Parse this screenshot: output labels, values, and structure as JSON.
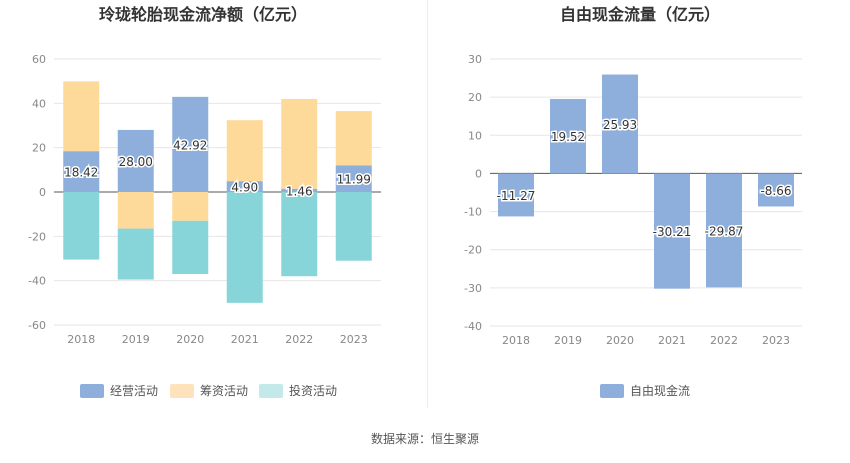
{
  "chart_data": [
    {
      "type": "bar",
      "stacked": true,
      "title": "玲珑轮胎现金流净额（亿元）",
      "categories": [
        "2018",
        "2019",
        "2020",
        "2021",
        "2022",
        "2023"
      ],
      "ylim": [
        -60,
        60
      ],
      "yticks": [
        -60,
        -40,
        -20,
        0,
        20,
        40,
        60
      ],
      "series": [
        {
          "name": "经营活动",
          "color": "#8eaedb",
          "values": [
            18.42,
            28.0,
            42.92,
            4.9,
            1.46,
            11.99
          ]
        },
        {
          "name": "筹资活动",
          "color": "#fdd99a",
          "values": [
            31.5,
            -16.5,
            -13.0,
            27.5,
            40.5,
            24.5
          ]
        },
        {
          "name": "投资活动",
          "color": "#87d5d8",
          "values": [
            -30.5,
            -23.0,
            -24.0,
            -50.0,
            -38.0,
            -31.0
          ]
        }
      ],
      "data_labels": [
        "18.42",
        "28.00",
        "42.92",
        "4.90",
        "1.46",
        "11.99"
      ],
      "legend": [
        {
          "label": "经营活动",
          "color": "#8eaedb"
        },
        {
          "label": "筹资活动",
          "color": "#fde2bb"
        },
        {
          "label": "投资活动",
          "color": "#c4e9ea"
        }
      ]
    },
    {
      "type": "bar",
      "title": "自由现金流量（亿元）",
      "categories": [
        "2018",
        "2019",
        "2020",
        "2021",
        "2022",
        "2023"
      ],
      "ylim": [
        -40,
        30
      ],
      "yticks": [
        -40,
        -30,
        -20,
        -10,
        0,
        10,
        20,
        30
      ],
      "series": [
        {
          "name": "自由现金流",
          "color": "#8eaedb",
          "values": [
            -11.27,
            19.52,
            25.93,
            -30.21,
            -29.87,
            -8.66
          ]
        }
      ],
      "data_labels": [
        "-11.27",
        "19.52",
        "25.93",
        "-30.21",
        "-29.87",
        "-8.66"
      ],
      "legend": [
        {
          "label": "自由现金流",
          "color": "#8eaedb"
        }
      ]
    }
  ],
  "source_text": "数据来源：恒生聚源"
}
